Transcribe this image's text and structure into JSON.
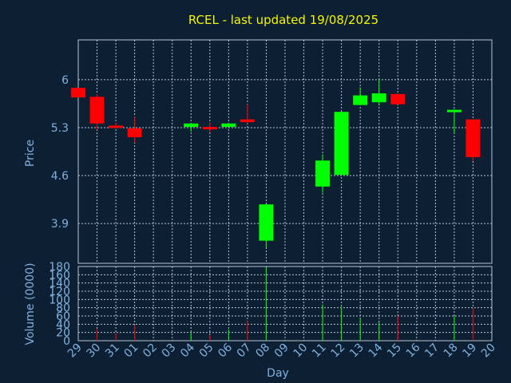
{
  "chart_data": [
    {
      "type": "candlestick",
      "title": "RCEL - last updated 19/08/2025",
      "xlabel": "",
      "ylabel": "Price",
      "yticks": [
        3.9,
        4.6,
        5.3,
        6
      ],
      "ylim": [
        3.32,
        6.58
      ],
      "categories": [
        "29",
        "30",
        "31",
        "01",
        "02",
        "03",
        "04",
        "05",
        "06",
        "07",
        "08",
        "09",
        "10",
        "11",
        "12",
        "13",
        "14",
        "15",
        "16",
        "17",
        "18",
        "19",
        "20"
      ],
      "up_color": "#00ff00",
      "down_color": "#ff0000",
      "grid": true,
      "candles": [
        {
          "day": "29",
          "open": 5.88,
          "close": 5.74,
          "high": 5.88,
          "low": 5.74
        },
        {
          "day": "30",
          "open": 5.75,
          "close": 5.36,
          "high": 5.79,
          "low": 5.27
        },
        {
          "day": "31",
          "open": 5.33,
          "close": 5.3,
          "high": 5.37,
          "low": 5.29
        },
        {
          "day": "01",
          "open": 5.29,
          "close": 5.16,
          "high": 5.46,
          "low": 5.08
        },
        {
          "day": "04",
          "open": 5.31,
          "close": 5.36,
          "high": 5.37,
          "low": 5.24
        },
        {
          "day": "05",
          "open": 5.31,
          "close": 5.29,
          "high": 5.37,
          "low": 5.23
        },
        {
          "day": "06",
          "open": 5.31,
          "close": 5.36,
          "high": 5.37,
          "low": 5.29
        },
        {
          "day": "07",
          "open": 5.42,
          "close": 5.38,
          "high": 5.64,
          "low": 5.36
        },
        {
          "day": "08",
          "open": 3.65,
          "close": 4.18,
          "high": 4.18,
          "low": 3.55
        },
        {
          "day": "11",
          "open": 4.44,
          "close": 4.82,
          "high": 4.91,
          "low": 4.35
        },
        {
          "day": "12",
          "open": 4.61,
          "close": 5.53,
          "high": 5.53,
          "low": 4.61
        },
        {
          "day": "13",
          "open": 5.63,
          "close": 5.77,
          "high": 5.89,
          "low": 5.63
        },
        {
          "day": "14",
          "open": 5.67,
          "close": 5.8,
          "high": 6.02,
          "low": 5.62
        },
        {
          "day": "15",
          "open": 5.79,
          "close": 5.64,
          "high": 5.8,
          "low": 5.64
        },
        {
          "day": "18",
          "open": 5.53,
          "close": 5.56,
          "high": 5.57,
          "low": 5.22
        },
        {
          "day": "19",
          "open": 5.42,
          "close": 4.87,
          "high": 5.42,
          "low": 4.81
        }
      ]
    },
    {
      "type": "bar",
      "xlabel": "Day",
      "ylabel": "Volume (0000)",
      "yticks": [
        0,
        20,
        40,
        60,
        80,
        100,
        120,
        140,
        160,
        180
      ],
      "ylim": [
        0,
        180
      ],
      "categories": [
        "29",
        "30",
        "31",
        "01",
        "02",
        "03",
        "04",
        "05",
        "06",
        "07",
        "08",
        "09",
        "10",
        "11",
        "12",
        "13",
        "14",
        "15",
        "16",
        "17",
        "18",
        "19",
        "20"
      ],
      "grid": true,
      "volumes": [
        {
          "day": "30",
          "value": 28,
          "dir": "down"
        },
        {
          "day": "31",
          "value": 18,
          "dir": "down"
        },
        {
          "day": "01",
          "value": 38,
          "dir": "down"
        },
        {
          "day": "04",
          "value": 20,
          "dir": "up"
        },
        {
          "day": "05",
          "value": 14,
          "dir": "down"
        },
        {
          "day": "06",
          "value": 27,
          "dir": "up"
        },
        {
          "day": "07",
          "value": 48,
          "dir": "down"
        },
        {
          "day": "08",
          "value": 178,
          "dir": "up"
        },
        {
          "day": "11",
          "value": 88,
          "dir": "up"
        },
        {
          "day": "12",
          "value": 82,
          "dir": "up"
        },
        {
          "day": "13",
          "value": 55,
          "dir": "up"
        },
        {
          "day": "14",
          "value": 45,
          "dir": "up"
        },
        {
          "day": "15",
          "value": 60,
          "dir": "down"
        },
        {
          "day": "18",
          "value": 60,
          "dir": "up"
        },
        {
          "day": "19",
          "value": 80,
          "dir": "down"
        }
      ]
    }
  ]
}
